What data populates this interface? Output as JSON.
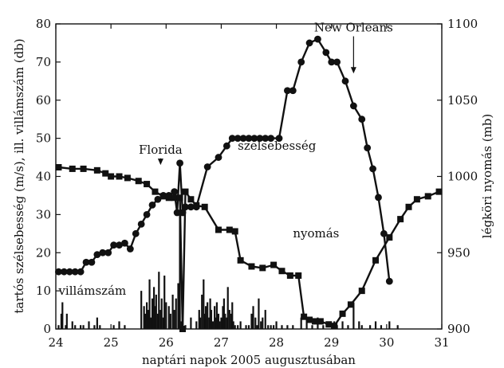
{
  "chart_data": {
    "type": "line",
    "xlabel": "naptári napok 2005 augusztusában",
    "ylabel_left": "tartós szélsebesség (m/s), ill. villámszám (db)",
    "ylabel_right": "légköri nyomás (mb)",
    "xlim": [
      24,
      31
    ],
    "ylim_left": [
      0,
      80
    ],
    "ylim_right": [
      900,
      1100
    ],
    "x_ticks": [
      24,
      25,
      26,
      27,
      28,
      29,
      30,
      31
    ],
    "y_left_ticks": [
      0,
      10,
      20,
      30,
      40,
      50,
      60,
      70,
      80
    ],
    "y_right_ticks": [
      900,
      950,
      1000,
      1050,
      1100
    ],
    "grid": false,
    "legend": "none",
    "series": [
      {
        "name": "szélsebesség",
        "axis": "left",
        "marker": "circle",
        "x": [
          24.05,
          24.15,
          24.25,
          24.35,
          24.45,
          24.55,
          24.65,
          24.75,
          24.85,
          24.95,
          25.05,
          25.15,
          25.25,
          25.35,
          25.45,
          25.55,
          25.65,
          25.75,
          25.85,
          25.95,
          26.05,
          26.15,
          26.2,
          26.25,
          26.3,
          26.35,
          26.45,
          26.55,
          26.75,
          26.95,
          27.1,
          27.2,
          27.3,
          27.4,
          27.5,
          27.6,
          27.7,
          27.8,
          27.9,
          28.05,
          28.2,
          28.3,
          28.45,
          28.6,
          28.75,
          28.9,
          29.0,
          29.1,
          29.25,
          29.4,
          29.55,
          29.65,
          29.75,
          29.85,
          29.95,
          30.05
        ],
        "values": [
          15,
          15,
          15,
          15,
          15,
          17.5,
          17.5,
          19.5,
          20,
          20,
          22,
          22,
          22.5,
          21,
          25,
          27.5,
          30,
          32.5,
          34,
          35,
          35,
          36,
          30.5,
          43.5,
          30.5,
          32,
          32,
          32,
          42.5,
          45,
          48,
          50,
          50,
          50,
          50,
          50,
          50,
          50,
          50,
          50,
          62.5,
          62.5,
          70,
          75,
          76,
          72.5,
          70,
          70,
          65,
          58.5,
          55,
          47.5,
          42,
          34.5,
          25,
          12.5
        ]
      },
      {
        "name": "nyomás",
        "axis": "right",
        "marker": "square",
        "x": [
          24.05,
          24.3,
          24.5,
          24.75,
          24.9,
          25.0,
          25.15,
          25.3,
          25.5,
          25.65,
          25.8,
          25.95,
          26.05,
          26.15,
          26.25,
          26.3,
          26.35,
          26.45,
          26.55,
          26.7,
          26.95,
          27.15,
          27.25,
          27.35,
          27.55,
          27.75,
          27.95,
          28.1,
          28.25,
          28.4,
          28.5,
          28.6,
          28.7,
          28.8,
          28.95,
          29.05,
          29.2,
          29.35,
          29.55,
          29.8,
          30.05,
          30.25,
          30.4,
          30.55,
          30.75,
          30.95
        ],
        "values": [
          1006,
          1005,
          1005,
          1004,
          1002,
          1000,
          1000,
          999,
          997,
          995,
          990,
          987,
          986,
          986,
          986,
          900,
          990,
          985,
          981,
          980,
          965,
          965,
          964,
          945,
          941,
          940,
          942,
          938,
          935,
          935,
          908,
          906,
          905,
          905,
          903,
          902,
          910,
          916,
          925,
          945,
          960,
          972,
          980,
          985,
          987,
          990
        ]
      },
      {
        "name": "villámszám",
        "axis": "left",
        "marker": "none",
        "x": [
          24.05,
          24.1,
          24.12,
          24.18,
          24.2,
          24.3,
          24.35,
          24.45,
          24.5,
          24.6,
          24.7,
          24.75,
          24.8,
          25.05,
          25.15,
          25.25,
          25.55,
          25.6,
          25.62,
          25.65,
          25.67,
          25.7,
          25.72,
          25.75,
          25.78,
          25.8,
          25.82,
          25.85,
          25.87,
          25.9,
          25.92,
          25.95,
          25.97,
          26.0,
          26.05,
          26.08,
          26.12,
          26.15,
          26.18,
          26.22,
          26.25,
          26.28,
          26.3,
          26.35,
          26.45,
          26.55,
          26.6,
          26.62,
          26.65,
          26.68,
          26.7,
          26.72,
          26.75,
          26.78,
          26.8,
          26.82,
          26.85,
          26.88,
          26.9,
          26.92,
          26.95,
          26.97,
          27.0,
          27.03,
          27.05,
          27.07,
          27.1,
          27.12,
          27.15,
          27.18,
          27.2,
          27.22,
          27.25,
          27.3,
          27.35,
          27.45,
          27.5,
          27.55,
          27.58,
          27.62,
          27.65,
          27.68,
          27.72,
          27.75,
          27.8,
          27.85,
          27.9,
          27.95,
          28.0,
          28.1,
          28.2,
          28.3,
          28.45,
          28.55,
          28.65,
          28.75,
          28.85,
          29.05,
          29.1,
          29.2,
          29.3,
          29.4,
          29.5,
          29.55,
          29.7,
          29.8,
          29.9,
          30.05,
          30.2
        ],
        "values": [
          1,
          4,
          7,
          1,
          4,
          2,
          1,
          1,
          1,
          2,
          1,
          3,
          1,
          1,
          2,
          1,
          10,
          6,
          4,
          7,
          5,
          13,
          3,
          8,
          11,
          6,
          9,
          4,
          15,
          5,
          8,
          3,
          14,
          7,
          6,
          4,
          9,
          5,
          8,
          12,
          30,
          2,
          10,
          1,
          3,
          2,
          5,
          3,
          9,
          13,
          4,
          6,
          7,
          3,
          8,
          5,
          2,
          6,
          3,
          7,
          4,
          2,
          3,
          6,
          8,
          4,
          3,
          11,
          5,
          4,
          7,
          2,
          1,
          1,
          2,
          1,
          1,
          4,
          6,
          3,
          1,
          8,
          2,
          3,
          5,
          1,
          1,
          1,
          2,
          1,
          1,
          1,
          3,
          3,
          1,
          3,
          1,
          2,
          1,
          2,
          1,
          7,
          2,
          1,
          1,
          2,
          1,
          2,
          1
        ]
      }
    ],
    "annotations": [
      {
        "text": "Florida",
        "x": 25.9,
        "value": 46,
        "arrow_to": 43
      },
      {
        "text": "New Orleans",
        "x": 29.4,
        "value": 78,
        "arrow_to": 67
      },
      {
        "text": "szélsebesség",
        "x": 27.3,
        "value": 47
      },
      {
        "text": "nyomás",
        "x": 28.3,
        "value": 24
      },
      {
        "text": "villámszám",
        "x": 24.05,
        "value": 9
      }
    ]
  }
}
